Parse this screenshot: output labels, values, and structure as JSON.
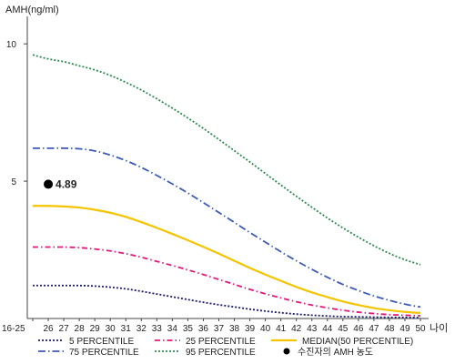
{
  "chart_data": {
    "type": "line",
    "ylabel": "AMH(ng/ml)",
    "xlabel": "나이",
    "ylim": [
      0,
      11
    ],
    "yticks": [
      5,
      10
    ],
    "categories": [
      "16-25",
      "26",
      "27",
      "28",
      "29",
      "30",
      "31",
      "32",
      "33",
      "34",
      "35",
      "36",
      "37",
      "38",
      "39",
      "40",
      "41",
      "42",
      "43",
      "44",
      "45",
      "46",
      "47",
      "48",
      "49",
      "50"
    ],
    "series": [
      {
        "name": "5 PERCENTILE",
        "color": "#1a1a6e",
        "dash": "2,2",
        "values": [
          1.2,
          1.2,
          1.2,
          1.2,
          1.18,
          1.14,
          1.08,
          0.99,
          0.89,
          0.79,
          0.69,
          0.59,
          0.5,
          0.42,
          0.34,
          0.27,
          0.21,
          0.16,
          0.12,
          0.09,
          0.07,
          0.06,
          0.05,
          0.04,
          0.04,
          0.03
        ]
      },
      {
        "name": "25 PERCENTILE",
        "color": "#e0197d",
        "dash": "6,3,1.5,3",
        "values": [
          2.6,
          2.6,
          2.6,
          2.58,
          2.53,
          2.46,
          2.36,
          2.23,
          2.08,
          1.93,
          1.77,
          1.6,
          1.42,
          1.24,
          1.06,
          0.9,
          0.75,
          0.61,
          0.49,
          0.39,
          0.3,
          0.23,
          0.18,
          0.14,
          0.12,
          0.1
        ]
      },
      {
        "name": "MEDIAN(50 PERCENTILE)",
        "color": "#f5c400",
        "dash": "",
        "values": [
          4.1,
          4.1,
          4.08,
          4.04,
          3.96,
          3.85,
          3.7,
          3.51,
          3.3,
          3.08,
          2.85,
          2.61,
          2.36,
          2.1,
          1.84,
          1.6,
          1.37,
          1.15,
          0.95,
          0.78,
          0.62,
          0.49,
          0.38,
          0.3,
          0.24,
          0.2
        ]
      },
      {
        "name": "75 PERCENTILE",
        "color": "#3d5ab8",
        "dash": "8,3,1.5,3",
        "values": [
          6.2,
          6.2,
          6.2,
          6.18,
          6.1,
          5.95,
          5.75,
          5.5,
          5.21,
          4.9,
          4.57,
          4.22,
          3.86,
          3.5,
          3.13,
          2.78,
          2.43,
          2.1,
          1.79,
          1.5,
          1.24,
          1.02,
          0.82,
          0.66,
          0.52,
          0.42
        ]
      },
      {
        "name": "95 PERCENTILE",
        "color": "#2f8a4f",
        "dash": "2,2",
        "values": [
          9.6,
          9.45,
          9.35,
          9.2,
          9.05,
          8.85,
          8.6,
          8.32,
          8.0,
          7.66,
          7.3,
          6.92,
          6.52,
          6.11,
          5.7,
          5.28,
          4.86,
          4.45,
          4.05,
          3.66,
          3.3,
          2.96,
          2.65,
          2.37,
          2.14,
          1.96
        ]
      }
    ],
    "marker": {
      "label": "수진자의 AMH 농도",
      "x": "26",
      "value": 4.89,
      "value_label": "4.89",
      "color": "#000000"
    }
  }
}
